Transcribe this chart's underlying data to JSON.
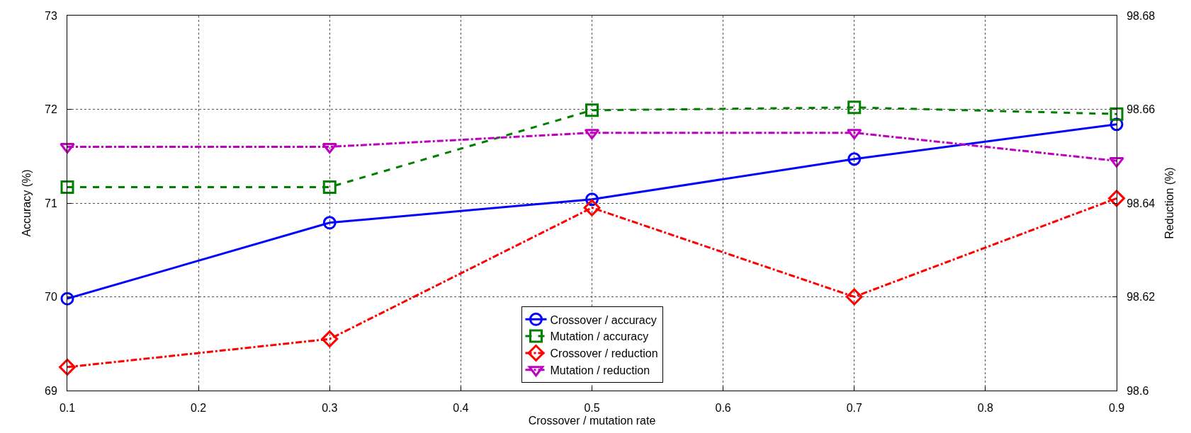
{
  "chart_data": {
    "type": "line",
    "xlabel": "Crossover / mutation rate",
    "ylabel": "Accuracy (%)",
    "y2label": "Reduction (%)",
    "x": [
      0.1,
      0.3,
      0.5,
      0.7,
      0.9
    ],
    "xlim": [
      0.1,
      0.9
    ],
    "xticks": [
      0.1,
      0.2,
      0.3,
      0.4,
      0.5,
      0.6,
      0.7,
      0.8,
      0.9
    ],
    "ylim": [
      69,
      73
    ],
    "yticks": [
      69,
      70,
      71,
      72,
      73
    ],
    "y2lim": [
      98.6,
      98.68
    ],
    "y2ticks": [
      98.6,
      98.62,
      98.64,
      98.66,
      98.68
    ],
    "grid": true,
    "legend": "bottom",
    "series": [
      {
        "name": "Crossover / accuracy",
        "color": "#0000ff",
        "marker": "circle",
        "line_style": "solid",
        "values": [
          69.98,
          70.79,
          71.04,
          71.47,
          71.84
        ]
      },
      {
        "name": "Mutation / accuracy",
        "color": "#008000",
        "marker": "square",
        "line_style": "dashed",
        "values": [
          71.17,
          71.17,
          71.99,
          72.02,
          71.95
        ]
      },
      {
        "name": "Crossover / reduction",
        "color": "#ff0000",
        "marker": "diamond",
        "line_style": "dashdot",
        "axis": "y2",
        "values": [
          98.605,
          98.611,
          98.639,
          98.62,
          98.641
        ]
      },
      {
        "name": "Mutation / reduction",
        "color": "#bf00bf",
        "marker": "triangle-down",
        "line_style": "dashdot",
        "axis": "y2",
        "values": [
          98.652,
          98.652,
          98.655,
          98.655,
          98.649
        ]
      }
    ]
  }
}
